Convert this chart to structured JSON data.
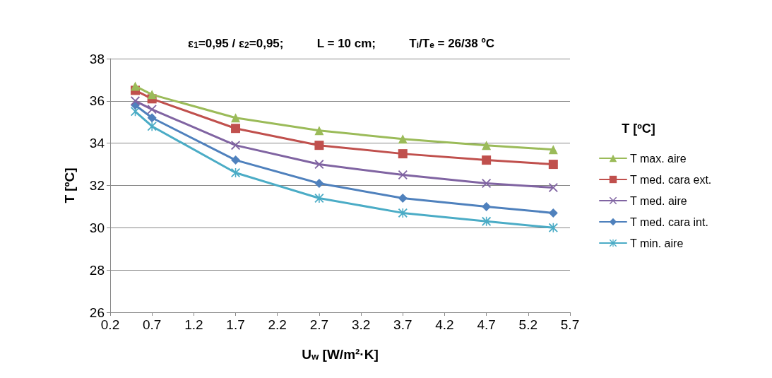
{
  "chart_data": {
    "type": "line",
    "title": "ε$_{1}$=0,95 / ε$_{2}$=0,95;          L = 10 cm;          T$_{i}$/T$_{e}$ = 26/38 ºC",
    "xlabel": "U$_{w}$ [W/m²·K]",
    "ylabel": "T [ºC]",
    "legend_title": "T [ºC]",
    "x": [
      0.5,
      0.7,
      1.7,
      2.7,
      3.7,
      4.7,
      5.5
    ],
    "series": [
      {
        "name": "T max. aire",
        "color": "#9bbb59",
        "marker": "triangle",
        "values": [
          36.7,
          36.3,
          35.2,
          34.6,
          34.2,
          33.9,
          33.7
        ]
      },
      {
        "name": "T med. cara ext.",
        "color": "#c0504d",
        "marker": "square",
        "values": [
          36.5,
          36.1,
          34.7,
          33.9,
          33.5,
          33.2,
          33.0
        ]
      },
      {
        "name": "T med. aire",
        "color": "#8064a2",
        "marker": "cross",
        "values": [
          36.0,
          35.6,
          33.9,
          33.0,
          32.5,
          32.1,
          31.9
        ]
      },
      {
        "name": "T med. cara int.",
        "color": "#4f81bd",
        "marker": "diamond",
        "values": [
          35.8,
          35.2,
          33.2,
          32.1,
          31.4,
          31.0,
          30.7
        ]
      },
      {
        "name": "T min. aire",
        "color": "#4bacc6",
        "marker": "star",
        "values": [
          35.5,
          34.8,
          32.6,
          31.4,
          30.7,
          30.3,
          30.0
        ]
      }
    ],
    "xlim": [
      0.2,
      5.7
    ],
    "xticks": [
      0.2,
      0.7,
      1.2,
      1.7,
      2.2,
      2.7,
      3.2,
      3.7,
      4.2,
      4.7,
      5.2,
      5.7
    ],
    "ylim": [
      26,
      38
    ],
    "yticks": [
      26,
      28,
      30,
      32,
      34,
      36,
      38
    ],
    "grid": "y",
    "legend": "right",
    "line_style": "solid"
  }
}
